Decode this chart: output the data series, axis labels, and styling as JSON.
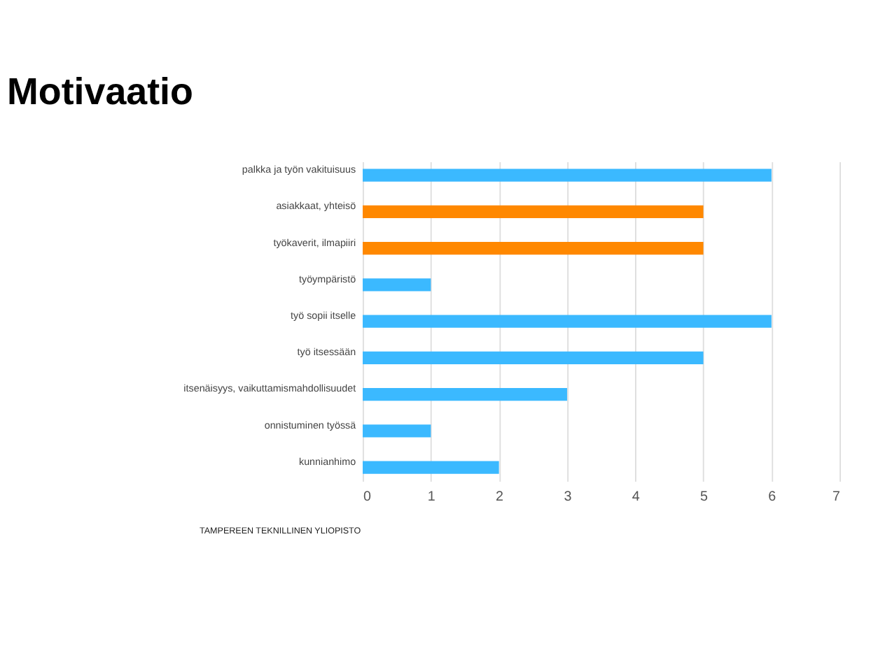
{
  "chart_data": {
    "type": "bar",
    "orientation": "horizontal",
    "title": "Motivaatio",
    "categories": [
      "palkka ja työn vakituisuus",
      "asiakkaat, yhteisö",
      "työkaverit, ilmapiiri",
      "työympäristö",
      "työ sopii itselle",
      "työ itsessään",
      "itsenäisyys, vaikuttamismahdollisuudet",
      "onnistuminen työssä",
      "kunnianhimo"
    ],
    "values": [
      6,
      5,
      5,
      1,
      6,
      5,
      3,
      1,
      2
    ],
    "colors": [
      "#3bb9ff",
      "#ff8800",
      "#ff8800",
      "#3bb9ff",
      "#3bb9ff",
      "#3bb9ff",
      "#3bb9ff",
      "#3bb9ff",
      "#3bb9ff"
    ],
    "xlim": [
      0,
      7
    ],
    "xticks": [
      0,
      1,
      2,
      3,
      4,
      5,
      6,
      7
    ],
    "grid": "x",
    "annotations": [
      "TAMPEREEN TEKNILLINEN YLIOPISTO"
    ]
  }
}
